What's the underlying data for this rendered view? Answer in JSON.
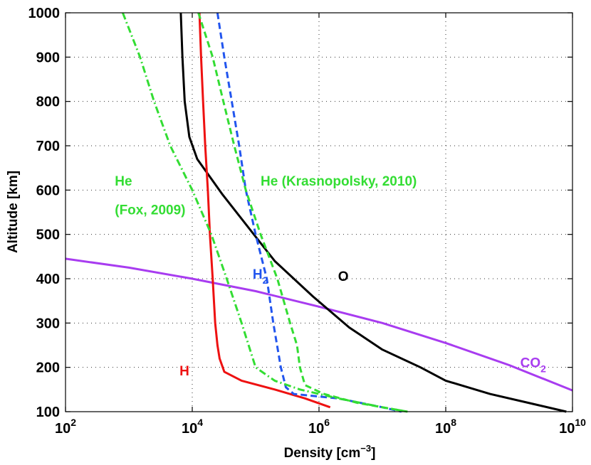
{
  "chart_data": {
    "type": "line",
    "xlabel": "Density [cm",
    "xlabel_exp": "−3",
    "xlabel_close": "]",
    "ylabel": "Altitude [km]",
    "xscale": "log",
    "xlim": [
      100,
      10000000000
    ],
    "ylim": [
      100,
      1000
    ],
    "grid": true,
    "x_ticks": [
      {
        "value": 100,
        "base": "10",
        "exp": "2"
      },
      {
        "value": 10000,
        "base": "10",
        "exp": "4"
      },
      {
        "value": 1000000,
        "base": "10",
        "exp": "6"
      },
      {
        "value": 100000000,
        "base": "10",
        "exp": "8"
      },
      {
        "value": 10000000000,
        "base": "10",
        "exp": "10"
      }
    ],
    "y_ticks": [
      {
        "value": 100,
        "label": "100"
      },
      {
        "value": 200,
        "label": "200"
      },
      {
        "value": 300,
        "label": "300"
      },
      {
        "value": 400,
        "label": "400"
      },
      {
        "value": 500,
        "label": "500"
      },
      {
        "value": 600,
        "label": "600"
      },
      {
        "value": 700,
        "label": "700"
      },
      {
        "value": 800,
        "label": "800"
      },
      {
        "value": 900,
        "label": "900"
      },
      {
        "value": 1000,
        "label": "1000"
      }
    ],
    "series": [
      {
        "key": "co2",
        "color": "#a83cf0",
        "dash": "solid",
        "points": [
          [
            100,
            445
          ],
          [
            1000,
            425
          ],
          [
            10000,
            400
          ],
          [
            100000,
            372
          ],
          [
            1000000,
            337
          ],
          [
            10000000,
            300
          ],
          [
            100000000,
            255
          ],
          [
            1000000000,
            205
          ],
          [
            10000000000,
            148
          ]
        ]
      },
      {
        "key": "o",
        "color": "#000000",
        "dash": "solid",
        "points": [
          [
            6600,
            1000
          ],
          [
            7000,
            900
          ],
          [
            7600,
            800
          ],
          [
            9000,
            720
          ],
          [
            12000,
            670
          ],
          [
            30000,
            590
          ],
          [
            200000,
            440
          ],
          [
            800000,
            360
          ],
          [
            3000000,
            290
          ],
          [
            10000000,
            240
          ],
          [
            40000000,
            200
          ],
          [
            100000000,
            170
          ],
          [
            500000000,
            140
          ],
          [
            2000000000,
            120
          ],
          [
            8000000000,
            100
          ]
        ]
      },
      {
        "key": "h",
        "color": "#ee1111",
        "dash": "solid",
        "points": [
          [
            13000,
            1000
          ],
          [
            13800,
            900
          ],
          [
            14800,
            800
          ],
          [
            16000,
            700
          ],
          [
            17600,
            600
          ],
          [
            19000,
            500
          ],
          [
            21000,
            400
          ],
          [
            23000,
            300
          ],
          [
            25000,
            250
          ],
          [
            27000,
            220
          ],
          [
            32000,
            190
          ],
          [
            60000,
            170
          ],
          [
            200000,
            150
          ],
          [
            600000,
            130
          ],
          [
            1500000,
            110
          ]
        ]
      },
      {
        "key": "h2",
        "color": "#2255ee",
        "dash": "dash",
        "points": [
          [
            25000,
            1000
          ],
          [
            32000,
            900
          ],
          [
            42000,
            800
          ],
          [
            55000,
            700
          ],
          [
            70000,
            600
          ],
          [
            100000,
            500
          ],
          [
            150000,
            400
          ],
          [
            190000,
            300
          ],
          [
            250000,
            200
          ],
          [
            300000,
            155
          ],
          [
            400000,
            140
          ],
          [
            2000000,
            130
          ],
          [
            10000000,
            110
          ],
          [
            20000000,
            100
          ]
        ]
      },
      {
        "key": "he_kras",
        "color": "#33dd33",
        "dash": "dash",
        "points": [
          [
            12500,
            1000
          ],
          [
            21000,
            900
          ],
          [
            31000,
            800
          ],
          [
            46000,
            700
          ],
          [
            70000,
            600
          ],
          [
            120000,
            500
          ],
          [
            220000,
            400
          ],
          [
            350000,
            300
          ],
          [
            450000,
            250
          ],
          [
            500000,
            200
          ],
          [
            600000,
            160
          ],
          [
            1200000,
            140
          ],
          [
            4000000,
            120
          ],
          [
            10000000,
            110
          ],
          [
            25000000,
            100
          ]
        ]
      },
      {
        "key": "he_fox",
        "color": "#33dd33",
        "dash": "dashdot",
        "points": [
          [
            800,
            1000
          ],
          [
            1500,
            900
          ],
          [
            2500,
            800
          ],
          [
            4500,
            700
          ],
          [
            10000,
            600
          ],
          [
            20000,
            500
          ],
          [
            35000,
            400
          ],
          [
            60000,
            300
          ],
          [
            100000,
            200
          ],
          [
            200000,
            170
          ],
          [
            500000,
            150
          ],
          [
            2000000,
            130
          ],
          [
            10000000,
            110
          ],
          [
            25000000,
            100
          ]
        ]
      }
    ],
    "labels": [
      {
        "key": "co2",
        "text": "CO",
        "sub": "2",
        "color": "#a83cf0",
        "x": 1500000000,
        "y": 200
      },
      {
        "key": "o",
        "text": "O",
        "sub": "",
        "color": "#000000",
        "x": 2000000,
        "y": 395
      },
      {
        "key": "h",
        "text": "H",
        "sub": "",
        "color": "#ee1111",
        "x": 6300,
        "y": 182
      },
      {
        "key": "h2",
        "text": "H",
        "sub": "2",
        "color": "#2255ee",
        "x": 90000,
        "y": 400
      },
      {
        "key": "he_kras_label",
        "text": "He (Krasnopolsky, 2010)",
        "sub": "",
        "color": "#33dd33",
        "x": 120000,
        "y": 610
      },
      {
        "key": "he_fox_label1",
        "text": "He",
        "sub": "",
        "color": "#33dd33",
        "x": 600,
        "y": 610
      },
      {
        "key": "he_fox_label2",
        "text": "(Fox, 2009)",
        "sub": "",
        "color": "#33dd33",
        "x": 600,
        "y": 545
      }
    ]
  }
}
